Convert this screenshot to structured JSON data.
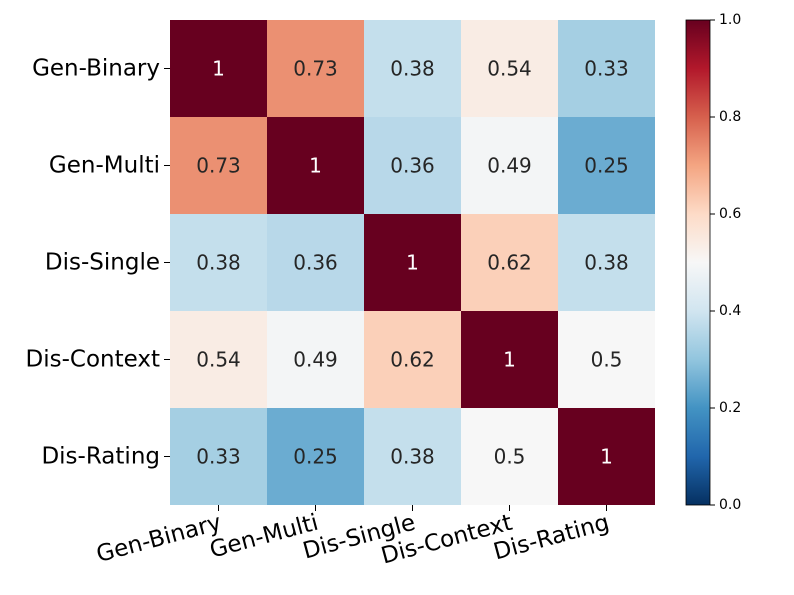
{
  "chart_data": {
    "type": "heatmap",
    "title": "",
    "row_labels": [
      "Gen-Binary",
      "Gen-Multi",
      "Dis-Single",
      "Dis-Context",
      "Dis-Rating"
    ],
    "col_labels": [
      "Gen-Binary",
      "Gen-Multi",
      "Dis-Single",
      "Dis-Context",
      "Dis-Rating"
    ],
    "values": [
      [
        1,
        0.73,
        0.38,
        0.54,
        0.33
      ],
      [
        0.73,
        1,
        0.36,
        0.49,
        0.25
      ],
      [
        0.38,
        0.36,
        1,
        0.62,
        0.38
      ],
      [
        0.54,
        0.49,
        0.62,
        1,
        0.5
      ],
      [
        0.33,
        0.25,
        0.38,
        0.5,
        1
      ]
    ],
    "value_labels": [
      [
        "1",
        "0.73",
        "0.38",
        "0.54",
        "0.33"
      ],
      [
        "0.73",
        "1",
        "0.36",
        "0.49",
        "0.25"
      ],
      [
        "0.38",
        "0.36",
        "1",
        "0.62",
        "0.38"
      ],
      [
        "0.54",
        "0.49",
        "0.62",
        "1",
        "0.5"
      ],
      [
        "0.33",
        "0.25",
        "0.38",
        "0.5",
        "1"
      ]
    ],
    "colormap": "RdBu_r",
    "vmin": 0.0,
    "vmax": 1.0,
    "colorbar_ticks": [
      "0.0",
      "0.2",
      "0.4",
      "0.6",
      "0.8",
      "1.0"
    ],
    "colorbar_tick_values": [
      0.0,
      0.2,
      0.4,
      0.6,
      0.8,
      1.0
    ],
    "colors": {
      "stops": [
        "#053061",
        "#2166ac",
        "#4393c3",
        "#92c5de",
        "#d1e5f0",
        "#f7f7f7",
        "#fddbc7",
        "#f4a582",
        "#d6604d",
        "#b2182b",
        "#67001f"
      ],
      "text_light": "#ffffff",
      "text_dark": "#262626"
    }
  }
}
